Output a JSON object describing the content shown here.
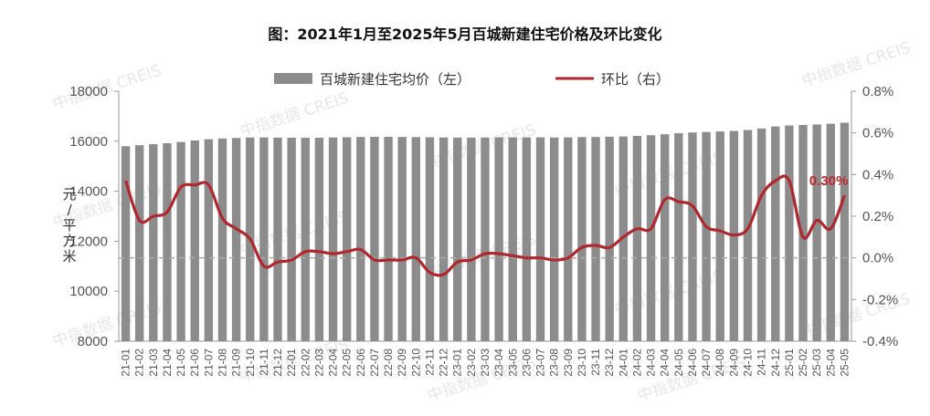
{
  "chart_data": {
    "type": "bar",
    "title": "图：2021年1月至2025年5月百城新建住宅价格及环比变化",
    "ylabel": "元/平方米",
    "ylabel_chars": [
      "元",
      "/",
      "平",
      "方",
      "米"
    ],
    "ylim": [
      8000,
      18000
    ],
    "yticks": [
      "8000",
      "10000",
      "12000",
      "14000",
      "16000",
      "18000"
    ],
    "y2lim": [
      -0.4,
      0.8
    ],
    "y2ticks": [
      "-0.4%",
      "-0.2%",
      "0.0%",
      "0.2%",
      "0.4%",
      "0.6%",
      "0.8%"
    ],
    "legend_placement": "top-center",
    "grid": false,
    "annotation": {
      "text": "0.30%",
      "color": "#c0282d"
    },
    "categories": [
      "21-01",
      "21-02",
      "21-03",
      "21-04",
      "21-05",
      "21-06",
      "21-07",
      "21-08",
      "21-09",
      "21-10",
      "21-11",
      "21-12",
      "22-01",
      "22-02",
      "22-03",
      "22-04",
      "22-05",
      "22-06",
      "22-07",
      "22-08",
      "22-09",
      "22-10",
      "22-11",
      "22-12",
      "23-01",
      "23-02",
      "23-03",
      "23-04",
      "23-05",
      "23-06",
      "23-07",
      "23-08",
      "23-09",
      "23-10",
      "23-11",
      "23-12",
      "24-01",
      "24-02",
      "24-03",
      "24-04",
      "24-05",
      "24-06",
      "24-07",
      "24-08",
      "24-09",
      "24-10",
      "24-11",
      "24-12",
      "25-01",
      "25-02",
      "25-03",
      "25-04",
      "25-05"
    ],
    "series": [
      {
        "name": "百城新建住宅均价（左）",
        "type": "bar",
        "axis": "left",
        "color": "#8c8c8c",
        "values": [
          15800,
          15840,
          15880,
          15920,
          15970,
          16030,
          16080,
          16110,
          16130,
          16150,
          16150,
          16145,
          16140,
          16140,
          16140,
          16150,
          16160,
          16170,
          16175,
          16175,
          16170,
          16165,
          16160,
          16150,
          16145,
          16145,
          16150,
          16155,
          16155,
          16155,
          16155,
          16150,
          16155,
          16165,
          16170,
          16180,
          16190,
          16210,
          16240,
          16280,
          16320,
          16350,
          16370,
          16390,
          16410,
          16450,
          16510,
          16590,
          16630,
          16650,
          16670,
          16700,
          16740
        ]
      },
      {
        "name": "环比（右）",
        "type": "line",
        "axis": "right",
        "color": "#b0282d",
        "values": [
          0.37,
          0.18,
          0.2,
          0.22,
          0.34,
          0.35,
          0.35,
          0.19,
          0.14,
          0.09,
          -0.04,
          -0.02,
          -0.01,
          0.03,
          0.03,
          0.02,
          0.03,
          0.04,
          -0.01,
          -0.01,
          -0.01,
          0.0,
          -0.07,
          -0.08,
          -0.02,
          -0.01,
          0.02,
          0.02,
          0.01,
          0.0,
          0.0,
          -0.01,
          0.0,
          0.05,
          0.06,
          0.05,
          0.1,
          0.14,
          0.14,
          0.28,
          0.27,
          0.25,
          0.15,
          0.13,
          0.11,
          0.14,
          0.3,
          0.37,
          0.37,
          0.1,
          0.18,
          0.14,
          0.3
        ]
      }
    ]
  },
  "watermark": {
    "text": "中指数据 CREIS"
  }
}
